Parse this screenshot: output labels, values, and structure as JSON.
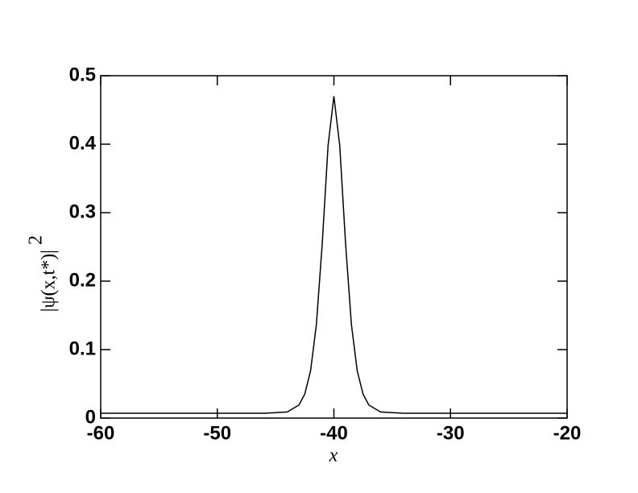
{
  "chart_data": {
    "type": "line",
    "xlabel": "x",
    "ylabel": "|ψ(x,t*)|",
    "ylabel_exponent": "2",
    "x": [
      -60,
      -55,
      -50,
      -48,
      -46,
      -45,
      -44,
      -43,
      -42.5,
      -42,
      -41.5,
      -41,
      -40.5,
      -40,
      -39.5,
      -39,
      -38.5,
      -38,
      -37.5,
      -37,
      -36,
      -35,
      -34,
      -32,
      -30,
      -25,
      -20
    ],
    "series": [
      {
        "color": "#000000",
        "values": [
          0.007,
          0.007,
          0.007,
          0.007,
          0.007,
          0.008,
          0.009,
          0.019,
          0.035,
          0.069,
          0.137,
          0.255,
          0.398,
          0.47,
          0.398,
          0.255,
          0.137,
          0.069,
          0.035,
          0.019,
          0.009,
          0.008,
          0.007,
          0.007,
          0.007,
          0.007,
          0.007
        ]
      }
    ],
    "xlim": [
      -60,
      -20
    ],
    "xticks": [
      -60,
      -50,
      -40,
      -30,
      -20
    ],
    "ylim": [
      0,
      0.5
    ],
    "yticks": [
      0,
      0.1,
      0.2,
      0.3,
      0.4,
      0.5
    ]
  }
}
